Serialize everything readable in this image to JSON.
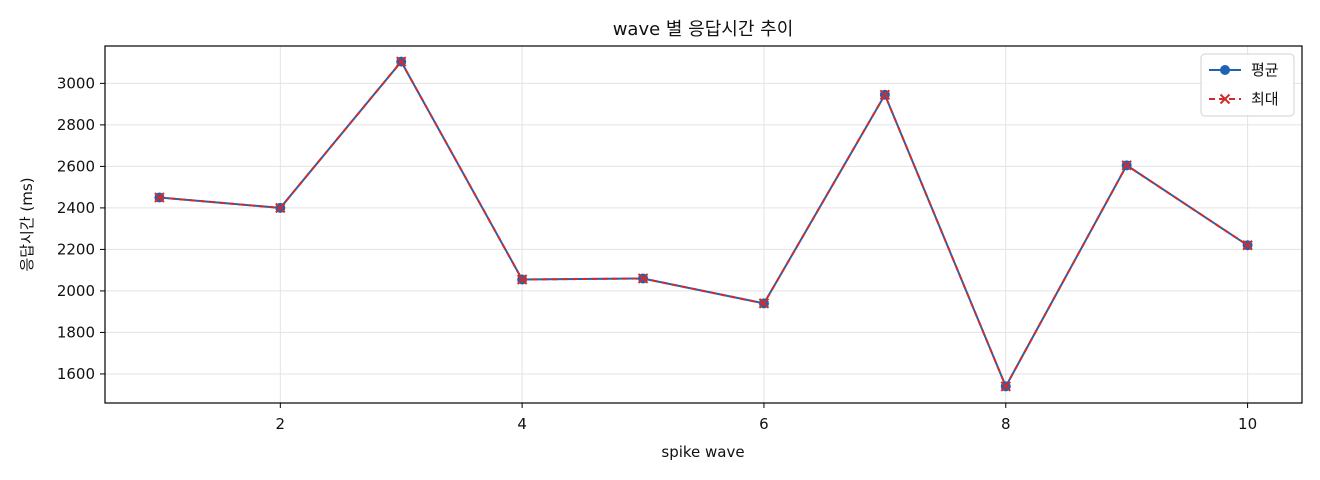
{
  "chart_data": {
    "type": "line",
    "title": "wave 별 응답시간 추이",
    "xlabel": "spike wave",
    "ylabel": "응답시간 (ms)",
    "x": [
      1,
      2,
      3,
      4,
      5,
      6,
      7,
      8,
      9,
      10
    ],
    "xlim": [
      0.55,
      10.45
    ],
    "ylim": [
      1460,
      3180
    ],
    "xticks": [
      2,
      4,
      6,
      8,
      10
    ],
    "yticks": [
      1600,
      1800,
      2000,
      2200,
      2400,
      2600,
      2800,
      3000
    ],
    "grid": true,
    "legend_position": "top-right",
    "series": [
      {
        "name": "평균",
        "values": [
          2450,
          2400,
          3105,
          2055,
          2060,
          1940,
          2945,
          1540,
          2605,
          2220
        ],
        "color": "#1f63b5",
        "linestyle": "solid",
        "marker": "circle"
      },
      {
        "name": "최대",
        "values": [
          2450,
          2400,
          3105,
          2055,
          2060,
          1940,
          2945,
          1540,
          2605,
          2220
        ],
        "color": "#cf2d2d",
        "linestyle": "dashed",
        "marker": "x"
      }
    ]
  }
}
